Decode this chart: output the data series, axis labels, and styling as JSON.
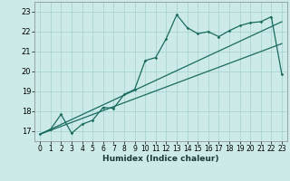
{
  "xlabel": "Humidex (Indice chaleur)",
  "background_color": "#cceae8",
  "grid_color": "#aad4d2",
  "line_color": "#1a6b5e",
  "xlim": [
    -0.5,
    23.5
  ],
  "ylim": [
    16.5,
    23.5
  ],
  "yticks": [
    17,
    18,
    19,
    20,
    21,
    22,
    23
  ],
  "xticks": [
    0,
    1,
    2,
    3,
    4,
    5,
    6,
    7,
    8,
    9,
    10,
    11,
    12,
    13,
    14,
    15,
    16,
    17,
    18,
    19,
    20,
    21,
    22,
    23
  ],
  "line1_x": [
    0,
    1,
    2,
    3,
    4,
    5,
    6,
    7,
    8,
    9,
    10,
    11,
    12,
    13,
    14,
    15,
    16,
    17,
    18,
    19,
    20,
    21,
    22,
    23
  ],
  "line1_y": [
    16.85,
    17.1,
    17.85,
    16.9,
    17.35,
    17.55,
    18.2,
    18.15,
    18.85,
    19.1,
    20.55,
    20.7,
    21.65,
    22.85,
    22.2,
    21.9,
    22.0,
    21.75,
    22.05,
    22.3,
    22.45,
    22.5,
    22.75,
    19.85
  ],
  "line2_x": [
    0,
    23
  ],
  "line2_y": [
    16.85,
    22.5
  ],
  "line3_x": [
    0,
    23
  ],
  "line3_y": [
    16.85,
    21.4
  ]
}
